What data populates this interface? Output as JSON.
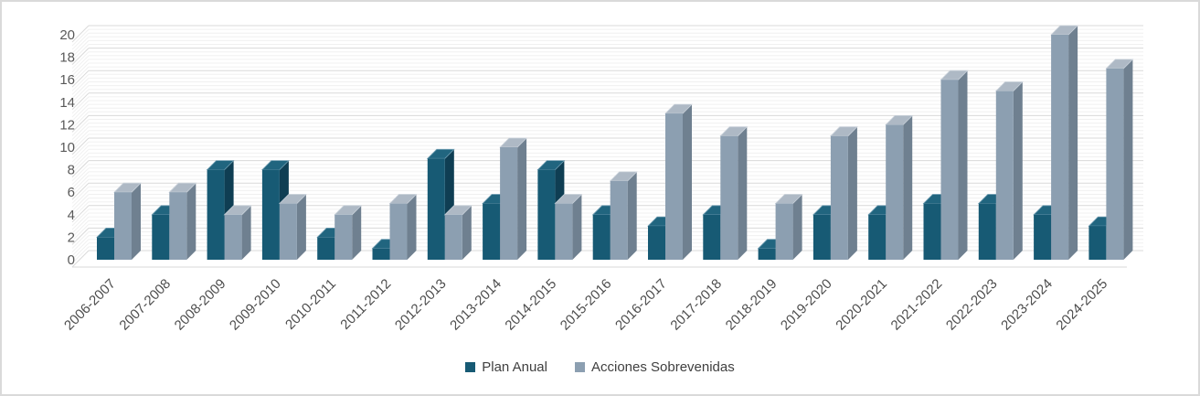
{
  "window": {
    "background": "#FFFFFF",
    "border_color": "#DADADA"
  },
  "chart_data": {
    "type": "bar",
    "style": "3d-clustered-column",
    "title": "",
    "xlabel": "",
    "ylabel": "",
    "categories": [
      "2006-2007",
      "2007-2008",
      "2008-2009",
      "2009-2010",
      "2010-2011",
      "2011-2012",
      "2012-2013",
      "2013-2014",
      "2014-2015",
      "2015-2016",
      "2016-2017",
      "2017-2018",
      "2018-2019",
      "2019-2020",
      "2020-2021",
      "2021-2022",
      "2022-2023",
      "2023-2024",
      "2024-2025"
    ],
    "series": [
      {
        "name": "Plan Anual",
        "color": "#175A74",
        "side_color": "#0F3E53",
        "top_color": "#21657F",
        "top_edge_color": "#6F9DB2",
        "values": [
          2,
          4,
          8,
          8,
          2,
          1,
          9,
          5,
          8,
          4,
          3,
          4,
          1,
          4,
          4,
          5,
          5,
          4,
          3
        ]
      },
      {
        "name": "Acciones Sobrevenidas",
        "color": "#8C9FB1",
        "side_color": "#6F8090",
        "top_color": "#AEB9C5",
        "top_edge_color": "#C9D1DA",
        "values": [
          6,
          6,
          4,
          5,
          4,
          5,
          4,
          10,
          5,
          7,
          13,
          11,
          5,
          11,
          12,
          16,
          15,
          20,
          17
        ]
      }
    ],
    "ylim": [
      0,
      20
    ],
    "y_tick_interval": 2,
    "y_tick_labels": [
      "0",
      "2",
      "4",
      "6",
      "8",
      "10",
      "12",
      "14",
      "16",
      "18",
      "20"
    ],
    "gridlines": {
      "major": true,
      "minor": true
    },
    "legend_position": "bottom",
    "axis_label_color": "#595959",
    "category_label_color": "#4D4D4D",
    "major_grid_color": "#D9D9D9",
    "minor_grid_color": "#F0F0F0"
  }
}
